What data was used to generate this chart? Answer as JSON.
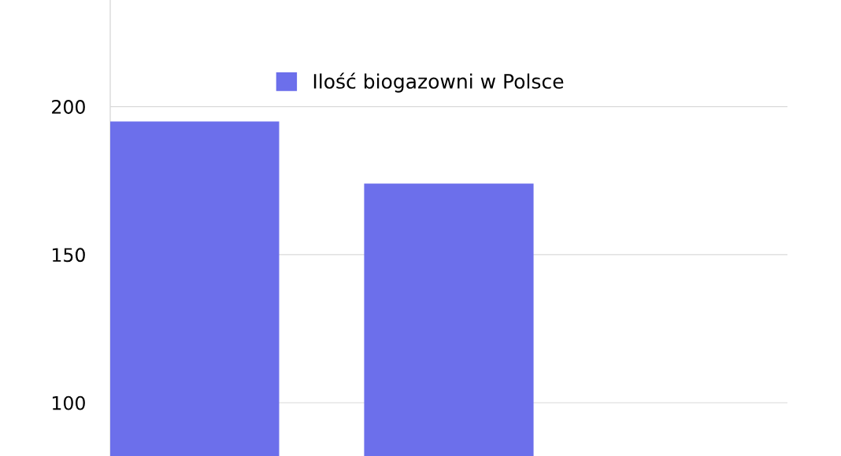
{
  "chart_data": {
    "type": "bar",
    "categories": [
      null,
      null,
      null
    ],
    "series": [
      {
        "name": "Ilość biogazowni w Polsce",
        "color": "#6c6feb",
        "values": [
          195,
          174,
          null
        ]
      }
    ],
    "ylim": [
      82,
      236
    ],
    "yticks": [
      100,
      150,
      200
    ],
    "grid": "y",
    "legend": "top",
    "tick_labels": "y"
  }
}
